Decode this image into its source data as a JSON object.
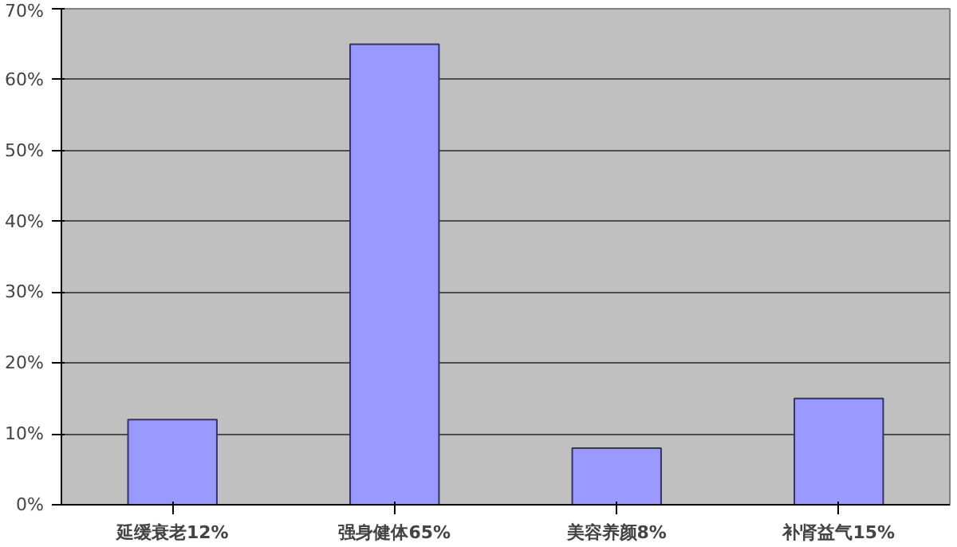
{
  "chart_data": {
    "type": "bar",
    "categories": [
      "延缓衰老12%",
      "强身健体65%",
      "美容养颜8%",
      "补肾益气15%"
    ],
    "values": [
      12,
      65,
      8,
      15
    ],
    "color": "#9999ff",
    "ylim": [
      0,
      70
    ],
    "yticks": [
      {
        "value": 0,
        "label": "0%"
      },
      {
        "value": 10,
        "label": "10%"
      },
      {
        "value": 20,
        "label": "20%"
      },
      {
        "value": 30,
        "label": "30%"
      },
      {
        "value": 40,
        "label": "40%"
      },
      {
        "value": 50,
        "label": "50%"
      },
      {
        "value": 60,
        "label": "60%"
      },
      {
        "value": 70,
        "label": "70%"
      }
    ],
    "grid": "y"
  }
}
